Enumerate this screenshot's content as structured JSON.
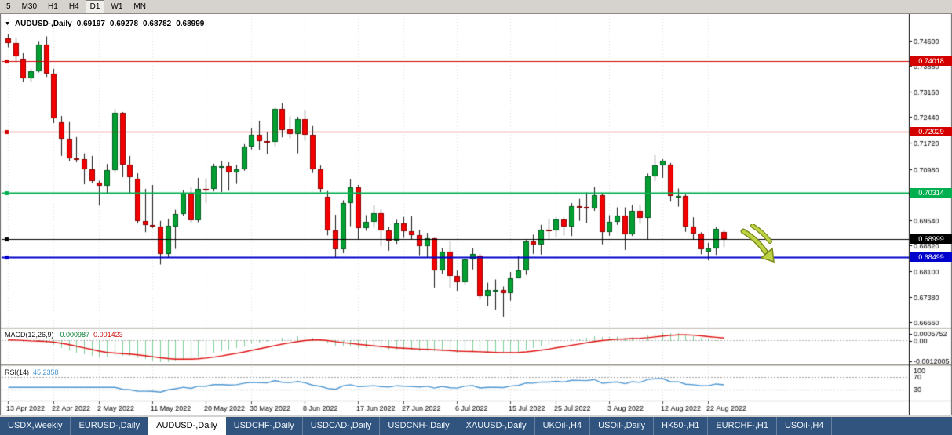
{
  "toolbar": {
    "timeframes": [
      {
        "label": "5",
        "active": false
      },
      {
        "label": "M30",
        "active": false
      },
      {
        "label": "H1",
        "active": false
      },
      {
        "label": "H4",
        "active": false
      },
      {
        "label": "D1",
        "active": true
      },
      {
        "label": "W1",
        "active": false
      },
      {
        "label": "MN",
        "active": false
      }
    ]
  },
  "header": {
    "collapse_icon": "▼",
    "symbol": "AUDUSD-,Daily",
    "open": "0.69197",
    "high": "0.69278",
    "low": "0.68782",
    "close": "0.68999"
  },
  "price_axis": {
    "ticks": [
      "0.74600",
      "0.73880",
      "0.73160",
      "0.72440",
      "0.71720",
      "0.70980",
      "0.70260",
      "0.69540",
      "0.68820",
      "0.68100",
      "0.67380",
      "0.66660"
    ]
  },
  "levels": [
    {
      "label": "0.74018",
      "price": 0.74018,
      "color": "#d40000",
      "width": 1
    },
    {
      "label": "0.72029",
      "price": 0.72029,
      "color": "#d40000",
      "width": 1
    },
    {
      "label": "0.70314",
      "price": 0.70314,
      "color": "#00b050",
      "width": 2
    },
    {
      "label": "0.68999",
      "price": 0.68999,
      "color": "#000000",
      "width": 1
    },
    {
      "label": "0.68499",
      "price": 0.68499,
      "color": "#0000cc",
      "width": 2
    }
  ],
  "time_axis": {
    "labels": [
      {
        "text": "13 Apr 2022",
        "i": 0
      },
      {
        "text": "22 Apr 2022",
        "i": 6
      },
      {
        "text": "2 May 2022",
        "i": 12
      },
      {
        "text": "11 May 2022",
        "i": 19
      },
      {
        "text": "20 May 2022",
        "i": 26
      },
      {
        "text": "30 May 2022",
        "i": 32
      },
      {
        "text": "8 Jun 2022",
        "i": 39
      },
      {
        "text": "17 Jun 2022",
        "i": 46
      },
      {
        "text": "27 Jun 2022",
        "i": 52
      },
      {
        "text": "6 Jul 2022",
        "i": 59
      },
      {
        "text": "15 Jul 2022",
        "i": 66
      },
      {
        "text": "25 Jul 2022",
        "i": 72
      },
      {
        "text": "3 Aug 2022",
        "i": 79
      },
      {
        "text": "12 Aug 2022",
        "i": 86
      },
      {
        "text": "22 Aug 2022",
        "i": 92
      }
    ]
  },
  "indicators": {
    "macd": {
      "name": "MACD(12,26,9)",
      "value_main": "-0.000987",
      "value_signal": "0.001423",
      "axis": [
        "0.0005752",
        "0.00",
        "-0.0012005"
      ],
      "fast": 12,
      "slow": 26,
      "smooth": 9
    },
    "rsi": {
      "name": "RSI(14)",
      "value": "45.2358",
      "period": 14,
      "axis": [
        "100",
        "70",
        "30"
      ],
      "levels": [
        70,
        30
      ]
    }
  },
  "annotation": {
    "type": "arrow-down-right",
    "color": "#bfd243",
    "outline": "#7c8c1c"
  },
  "colors": {
    "bull": "#00a132",
    "bull_border": "#005c1d",
    "bear": "#f40000",
    "bear_border": "#8f0000",
    "wick": "#1a1a1a",
    "grid": "#dedede",
    "macd_hist": "#00a13a",
    "macd_signal": "#e01010",
    "rsi_line": "#4d96d2",
    "panel_sep": "#d6d3ce",
    "axis_line": "#000000"
  },
  "tabs": [
    {
      "label": "USDX,Weekly",
      "active": false
    },
    {
      "label": "EURUSD-,Daily",
      "active": false
    },
    {
      "label": "AUDUSD-,Daily",
      "active": true
    },
    {
      "label": "USDCHF-,Daily",
      "active": false
    },
    {
      "label": "USDCAD-,Daily",
      "active": false
    },
    {
      "label": "USDCNH-,Daily",
      "active": false
    },
    {
      "label": "XAUUSD-,Daily",
      "active": false
    },
    {
      "label": "UKOil-,H4",
      "active": false
    },
    {
      "label": "USOil-,Daily",
      "active": false
    },
    {
      "label": "HK50-,H1",
      "active": false
    },
    {
      "label": "EURCHF-,H1",
      "active": false
    },
    {
      "label": "USOil-,H4",
      "active": false
    }
  ],
  "chart_data": {
    "type": "candlestick",
    "symbol": "AUDUSD",
    "timeframe": "Daily",
    "ohlc": [
      [
        0.7466,
        0.7478,
        0.744,
        0.7453
      ],
      [
        0.7453,
        0.7466,
        0.7398,
        0.7415
      ],
      [
        0.7408,
        0.7425,
        0.7342,
        0.7352
      ],
      [
        0.7352,
        0.738,
        0.7343,
        0.7374
      ],
      [
        0.7374,
        0.7458,
        0.737,
        0.7447
      ],
      [
        0.7447,
        0.7471,
        0.7357,
        0.7366
      ],
      [
        0.7366,
        0.738,
        0.7227,
        0.7241
      ],
      [
        0.723,
        0.7247,
        0.7135,
        0.7183
      ],
      [
        0.7183,
        0.723,
        0.712,
        0.7127
      ],
      [
        0.7127,
        0.7188,
        0.7117,
        0.7125
      ],
      [
        0.7125,
        0.7142,
        0.7055,
        0.7098
      ],
      [
        0.7098,
        0.7135,
        0.7058,
        0.7065
      ],
      [
        0.706,
        0.7065,
        0.6995,
        0.705
      ],
      [
        0.705,
        0.7112,
        0.7029,
        0.7094
      ],
      [
        0.7094,
        0.7266,
        0.7088,
        0.7255
      ],
      [
        0.7255,
        0.7258,
        0.7075,
        0.711
      ],
      [
        0.711,
        0.7135,
        0.703,
        0.7076
      ],
      [
        0.707,
        0.7086,
        0.6945,
        0.6952
      ],
      [
        0.6952,
        0.7042,
        0.692,
        0.6941
      ],
      [
        0.6941,
        0.7053,
        0.6932,
        0.6936
      ],
      [
        0.6936,
        0.6952,
        0.6829,
        0.6858
      ],
      [
        0.6858,
        0.6958,
        0.6849,
        0.6938
      ],
      [
        0.6935,
        0.6983,
        0.6873,
        0.6972
      ],
      [
        0.6972,
        0.7038,
        0.6966,
        0.7028
      ],
      [
        0.7028,
        0.7046,
        0.6946,
        0.6954
      ],
      [
        0.6954,
        0.7073,
        0.6948,
        0.7043
      ],
      [
        0.7043,
        0.7072,
        0.7002,
        0.704
      ],
      [
        0.7042,
        0.7113,
        0.7035,
        0.7106
      ],
      [
        0.7106,
        0.7121,
        0.7033,
        0.7107
      ],
      [
        0.7107,
        0.7117,
        0.7037,
        0.7089
      ],
      [
        0.7089,
        0.711,
        0.7056,
        0.7098
      ],
      [
        0.7098,
        0.7168,
        0.7093,
        0.716
      ],
      [
        0.716,
        0.7214,
        0.7153,
        0.7195
      ],
      [
        0.7195,
        0.7234,
        0.7152,
        0.7176
      ],
      [
        0.7176,
        0.7203,
        0.714,
        0.7175
      ],
      [
        0.7175,
        0.7271,
        0.7162,
        0.7266
      ],
      [
        0.7266,
        0.7283,
        0.7187,
        0.7207
      ],
      [
        0.721,
        0.7246,
        0.7184,
        0.7196
      ],
      [
        0.7196,
        0.7245,
        0.7142,
        0.7238
      ],
      [
        0.7238,
        0.7265,
        0.7178,
        0.7194
      ],
      [
        0.7194,
        0.7219,
        0.7087,
        0.7097
      ],
      [
        0.7097,
        0.7108,
        0.7033,
        0.7041
      ],
      [
        0.702,
        0.7036,
        0.6911,
        0.6925
      ],
      [
        0.6925,
        0.6969,
        0.685,
        0.6872
      ],
      [
        0.6872,
        0.701,
        0.6861,
        0.7003
      ],
      [
        0.7003,
        0.7069,
        0.6937,
        0.7046
      ],
      [
        0.7046,
        0.7053,
        0.69,
        0.6932
      ],
      [
        0.6932,
        0.6968,
        0.6924,
        0.695
      ],
      [
        0.695,
        0.6996,
        0.6933,
        0.6973
      ],
      [
        0.6973,
        0.6984,
        0.6881,
        0.6925
      ],
      [
        0.6925,
        0.6935,
        0.6868,
        0.6896
      ],
      [
        0.6896,
        0.6955,
        0.6887,
        0.6944
      ],
      [
        0.6944,
        0.6963,
        0.6904,
        0.6923
      ],
      [
        0.6923,
        0.6965,
        0.6899,
        0.6911
      ],
      [
        0.6911,
        0.6927,
        0.6855,
        0.688
      ],
      [
        0.688,
        0.6918,
        0.685,
        0.6903
      ],
      [
        0.6903,
        0.6904,
        0.6764,
        0.6813
      ],
      [
        0.6813,
        0.6876,
        0.6803,
        0.6866
      ],
      [
        0.6866,
        0.6895,
        0.6762,
        0.6797
      ],
      [
        0.6797,
        0.6812,
        0.6755,
        0.6779
      ],
      [
        0.6779,
        0.6848,
        0.6773,
        0.6843
      ],
      [
        0.6843,
        0.6875,
        0.6815,
        0.6858
      ],
      [
        0.6855,
        0.686,
        0.6731,
        0.6739
      ],
      [
        0.6739,
        0.6778,
        0.6712,
        0.6757
      ],
      [
        0.6757,
        0.6787,
        0.6702,
        0.6758
      ],
      [
        0.6758,
        0.6767,
        0.6682,
        0.6748
      ],
      [
        0.6748,
        0.6808,
        0.6727,
        0.6791
      ],
      [
        0.6791,
        0.6853,
        0.679,
        0.6813
      ],
      [
        0.6813,
        0.6898,
        0.68,
        0.6893
      ],
      [
        0.6893,
        0.6913,
        0.6859,
        0.6886
      ],
      [
        0.6886,
        0.6941,
        0.6857,
        0.6928
      ],
      [
        0.6928,
        0.6958,
        0.6898,
        0.6925
      ],
      [
        0.6925,
        0.6963,
        0.6905,
        0.6955
      ],
      [
        0.6955,
        0.6962,
        0.6911,
        0.6935
      ],
      [
        0.6935,
        0.7002,
        0.6909,
        0.6993
      ],
      [
        0.6993,
        0.7014,
        0.6952,
        0.6991
      ],
      [
        0.6991,
        0.7032,
        0.6946,
        0.6986
      ],
      [
        0.6986,
        0.7047,
        0.698,
        0.7025
      ],
      [
        0.7025,
        0.7031,
        0.6886,
        0.692
      ],
      [
        0.692,
        0.6968,
        0.691,
        0.695
      ],
      [
        0.695,
        0.699,
        0.6941,
        0.6967
      ],
      [
        0.6967,
        0.699,
        0.687,
        0.6913
      ],
      [
        0.6913,
        0.6997,
        0.6909,
        0.6981
      ],
      [
        0.6981,
        0.6998,
        0.6944,
        0.696
      ],
      [
        0.696,
        0.7085,
        0.6899,
        0.7078
      ],
      [
        0.7078,
        0.7137,
        0.7064,
        0.7109
      ],
      [
        0.7109,
        0.7126,
        0.7073,
        0.7121
      ],
      [
        0.711,
        0.7115,
        0.7006,
        0.7021
      ],
      [
        0.7021,
        0.7043,
        0.6992,
        0.7023
      ],
      [
        0.7023,
        0.7026,
        0.6921,
        0.6937
      ],
      [
        0.6937,
        0.6962,
        0.69,
        0.6916
      ],
      [
        0.6916,
        0.692,
        0.6858,
        0.6873
      ],
      [
        0.6866,
        0.689,
        0.6841,
        0.6875
      ],
      [
        0.6875,
        0.6934,
        0.6856,
        0.6929
      ],
      [
        0.69197,
        0.69278,
        0.68782,
        0.68999
      ]
    ]
  }
}
